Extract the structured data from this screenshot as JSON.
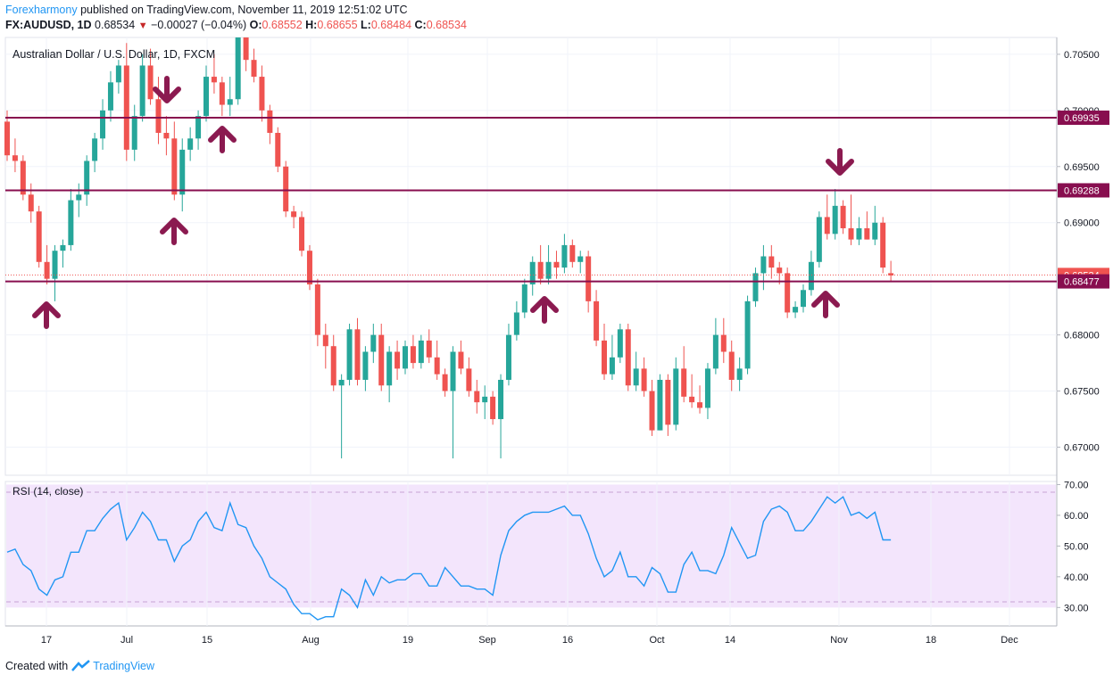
{
  "header": {
    "author": "Forexharmony",
    "published": "published on TradingView.com, November 11, 2019 12:51:02 UTC",
    "symbol": "FX:AUDUSD, 1D",
    "last": "0.68534",
    "change_arrow": "▼",
    "change": "−0.00027 (−0.04%)",
    "o_label": "O:",
    "o": "0.68552",
    "h_label": "H:",
    "h": "0.68655",
    "l_label": "L:",
    "l": "0.68484",
    "c_label": "C:",
    "c": "0.68534"
  },
  "footer": {
    "created": "Created with",
    "brand": "TradingView"
  },
  "colors": {
    "up": "#26a69a",
    "down": "#ef5350",
    "level": "#880e4f",
    "rsi": "#2196f3",
    "rsi_band": "#f3e5fc"
  },
  "chart_data": [
    {
      "type": "candlestick",
      "title": "Australian Dollar / U.S. Dollar, 1D, FXCM",
      "ylim": [
        0.6675,
        0.7065
      ],
      "y_ticks": [
        "0.70500",
        "0.70000",
        "0.69500",
        "0.69000",
        "0.68000",
        "0.67500",
        "0.67000"
      ],
      "x_ticks": [
        "17",
        "Jul",
        "15",
        "Aug",
        "19",
        "Sep",
        "16",
        "Oct",
        "14",
        "Nov",
        "18",
        "Dec"
      ],
      "horizontal_levels": [
        0.69935,
        0.69288,
        0.68477
      ],
      "price_labels": [
        {
          "value": 0.69935,
          "label": "0.69935"
        },
        {
          "value": 0.69288,
          "label": "0.69288"
        },
        {
          "value": 0.68534,
          "label": "0.68534"
        },
        {
          "value": 0.68477,
          "label": "0.68477"
        }
      ],
      "current_price": 0.68534,
      "ohlc": [
        [
          0.699,
          0.7,
          0.6955,
          0.696
        ],
        [
          0.696,
          0.6975,
          0.6945,
          0.6955
        ],
        [
          0.6955,
          0.696,
          0.692,
          0.6925
        ],
        [
          0.6925,
          0.6935,
          0.69,
          0.691
        ],
        [
          0.691,
          0.6915,
          0.686,
          0.6865
        ],
        [
          0.6865,
          0.688,
          0.6845,
          0.685
        ],
        [
          0.685,
          0.688,
          0.683,
          0.6875
        ],
        [
          0.6875,
          0.6885,
          0.686,
          0.688
        ],
        [
          0.688,
          0.693,
          0.6875,
          0.692
        ],
        [
          0.692,
          0.6935,
          0.6905,
          0.6925
        ],
        [
          0.6925,
          0.696,
          0.6915,
          0.6955
        ],
        [
          0.6955,
          0.698,
          0.6945,
          0.6975
        ],
        [
          0.6975,
          0.701,
          0.6965,
          0.7
        ],
        [
          0.7,
          0.7035,
          0.699,
          0.7025
        ],
        [
          0.7025,
          0.7045,
          0.7015,
          0.704
        ],
        [
          0.704,
          0.706,
          0.6955,
          0.6965
        ],
        [
          0.6965,
          0.7005,
          0.6955,
          0.6995
        ],
        [
          0.6995,
          0.705,
          0.699,
          0.704
        ],
        [
          0.704,
          0.7055,
          0.7005,
          0.701
        ],
        [
          0.701,
          0.703,
          0.697,
          0.698
        ],
        [
          0.698,
          0.6995,
          0.696,
          0.6975
        ],
        [
          0.6975,
          0.699,
          0.692,
          0.6925
        ],
        [
          0.6925,
          0.6975,
          0.691,
          0.6965
        ],
        [
          0.6965,
          0.6985,
          0.6955,
          0.6975
        ],
        [
          0.6975,
          0.7,
          0.6965,
          0.6995
        ],
        [
          0.6995,
          0.704,
          0.699,
          0.703
        ],
        [
          0.703,
          0.705,
          0.7015,
          0.7025
        ],
        [
          0.7025,
          0.703,
          0.6995,
          0.7005
        ],
        [
          0.7005,
          0.703,
          0.6995,
          0.701
        ],
        [
          0.701,
          0.708,
          0.7005,
          0.707
        ],
        [
          0.707,
          0.7085,
          0.7035,
          0.7045
        ],
        [
          0.7045,
          0.7055,
          0.7025,
          0.703
        ],
        [
          0.703,
          0.704,
          0.699,
          0.7
        ],
        [
          0.7,
          0.7005,
          0.697,
          0.698
        ],
        [
          0.698,
          0.6985,
          0.6945,
          0.695
        ],
        [
          0.695,
          0.6955,
          0.6905,
          0.691
        ],
        [
          0.691,
          0.6915,
          0.6895,
          0.6905
        ],
        [
          0.6905,
          0.691,
          0.687,
          0.6875
        ],
        [
          0.6875,
          0.688,
          0.684,
          0.6845
        ],
        [
          0.6845,
          0.685,
          0.679,
          0.68
        ],
        [
          0.68,
          0.681,
          0.677,
          0.679
        ],
        [
          0.679,
          0.68,
          0.675,
          0.6755
        ],
        [
          0.6755,
          0.6765,
          0.669,
          0.676
        ],
        [
          0.676,
          0.681,
          0.6755,
          0.6805
        ],
        [
          0.6805,
          0.6815,
          0.6755,
          0.676
        ],
        [
          0.676,
          0.679,
          0.675,
          0.6785
        ],
        [
          0.6785,
          0.681,
          0.6775,
          0.68
        ],
        [
          0.68,
          0.681,
          0.675,
          0.6755
        ],
        [
          0.6755,
          0.679,
          0.674,
          0.6785
        ],
        [
          0.6785,
          0.6795,
          0.676,
          0.677
        ],
        [
          0.677,
          0.6795,
          0.6765,
          0.679
        ],
        [
          0.679,
          0.68,
          0.677,
          0.6775
        ],
        [
          0.6775,
          0.68,
          0.677,
          0.6795
        ],
        [
          0.6795,
          0.6805,
          0.6775,
          0.678
        ],
        [
          0.678,
          0.6795,
          0.676,
          0.6765
        ],
        [
          0.6765,
          0.677,
          0.6745,
          0.675
        ],
        [
          0.675,
          0.679,
          0.669,
          0.6785
        ],
        [
          0.6785,
          0.6795,
          0.6765,
          0.677
        ],
        [
          0.677,
          0.678,
          0.6745,
          0.675
        ],
        [
          0.675,
          0.676,
          0.673,
          0.674
        ],
        [
          0.674,
          0.6755,
          0.6725,
          0.6745
        ],
        [
          0.6745,
          0.675,
          0.672,
          0.6725
        ],
        [
          0.6725,
          0.6765,
          0.669,
          0.676
        ],
        [
          0.676,
          0.681,
          0.6755,
          0.68
        ],
        [
          0.68,
          0.683,
          0.6795,
          0.682
        ],
        [
          0.682,
          0.685,
          0.6815,
          0.6845
        ],
        [
          0.6845,
          0.687,
          0.6835,
          0.6865
        ],
        [
          0.6865,
          0.688,
          0.6845,
          0.685
        ],
        [
          0.685,
          0.688,
          0.6845,
          0.6865
        ],
        [
          0.6865,
          0.6875,
          0.685,
          0.686
        ],
        [
          0.686,
          0.689,
          0.6855,
          0.688
        ],
        [
          0.688,
          0.6885,
          0.686,
          0.6865
        ],
        [
          0.6865,
          0.6875,
          0.6855,
          0.687
        ],
        [
          0.687,
          0.6875,
          0.682,
          0.683
        ],
        [
          0.683,
          0.684,
          0.679,
          0.6795
        ],
        [
          0.6795,
          0.681,
          0.676,
          0.6765
        ],
        [
          0.6765,
          0.68,
          0.676,
          0.678
        ],
        [
          0.678,
          0.681,
          0.6775,
          0.6805
        ],
        [
          0.6805,
          0.681,
          0.675,
          0.6755
        ],
        [
          0.6755,
          0.6785,
          0.675,
          0.677
        ],
        [
          0.677,
          0.678,
          0.6745,
          0.675
        ],
        [
          0.675,
          0.676,
          0.671,
          0.6715
        ],
        [
          0.6715,
          0.6765,
          0.6715,
          0.676
        ],
        [
          0.676,
          0.6765,
          0.671,
          0.672
        ],
        [
          0.672,
          0.678,
          0.6715,
          0.677
        ],
        [
          0.677,
          0.679,
          0.674,
          0.6745
        ],
        [
          0.6745,
          0.6765,
          0.6735,
          0.674
        ],
        [
          0.674,
          0.6755,
          0.673,
          0.6735
        ],
        [
          0.6735,
          0.6775,
          0.6725,
          0.677
        ],
        [
          0.677,
          0.6815,
          0.6765,
          0.68
        ],
        [
          0.68,
          0.6815,
          0.6775,
          0.6785
        ],
        [
          0.6785,
          0.6795,
          0.675,
          0.676
        ],
        [
          0.676,
          0.678,
          0.675,
          0.677
        ],
        [
          0.677,
          0.6835,
          0.6765,
          0.683
        ],
        [
          0.683,
          0.686,
          0.6825,
          0.6855
        ],
        [
          0.6855,
          0.688,
          0.684,
          0.687
        ],
        [
          0.687,
          0.688,
          0.685,
          0.686
        ],
        [
          0.686,
          0.6865,
          0.6845,
          0.6855
        ],
        [
          0.6855,
          0.686,
          0.6815,
          0.682
        ],
        [
          0.682,
          0.683,
          0.6815,
          0.6825
        ],
        [
          0.6825,
          0.6845,
          0.682,
          0.684
        ],
        [
          0.684,
          0.6875,
          0.6835,
          0.6865
        ],
        [
          0.6865,
          0.691,
          0.686,
          0.6905
        ],
        [
          0.6905,
          0.6925,
          0.6885,
          0.689
        ],
        [
          0.689,
          0.693,
          0.6885,
          0.6915
        ],
        [
          0.6915,
          0.692,
          0.689,
          0.6895
        ],
        [
          0.6895,
          0.6925,
          0.688,
          0.6885
        ],
        [
          0.6885,
          0.6905,
          0.688,
          0.6895
        ],
        [
          0.6895,
          0.691,
          0.6885,
          0.6885
        ],
        [
          0.6885,
          0.6915,
          0.688,
          0.69
        ],
        [
          0.69,
          0.6905,
          0.6855,
          0.686
        ],
        [
          0.6855,
          0.6866,
          0.6848,
          0.6853
        ]
      ]
    },
    {
      "type": "line",
      "title": "RSI (14, close)",
      "ylim": [
        24,
        71
      ],
      "y_ticks": [
        "70.00",
        "60.00",
        "50.00",
        "40.00",
        "30.00"
      ],
      "band": [
        30,
        70
      ],
      "values": [
        48,
        49,
        44,
        42,
        36,
        34,
        39,
        40,
        48,
        48,
        55,
        55,
        59,
        62,
        64,
        52,
        56,
        61,
        58,
        52,
        52,
        45,
        50,
        52,
        58,
        61,
        56,
        55,
        64,
        57,
        56,
        50,
        46,
        40,
        38,
        36,
        31,
        28,
        28,
        26,
        27,
        27,
        36,
        34,
        30,
        39,
        34,
        40,
        38,
        39,
        39,
        41,
        41,
        37,
        37,
        43,
        40,
        37,
        37,
        36,
        36,
        34,
        47,
        55,
        58,
        60,
        61,
        61,
        61,
        62,
        63,
        60,
        60,
        54,
        46,
        40,
        42,
        48,
        40,
        40,
        37,
        43,
        41,
        35,
        35,
        44,
        48,
        42,
        42,
        41,
        47,
        56,
        51,
        46,
        47,
        58,
        62,
        63,
        61,
        55,
        55,
        58,
        62,
        66,
        64,
        66,
        60,
        61,
        59,
        61,
        52,
        52
      ]
    }
  ]
}
